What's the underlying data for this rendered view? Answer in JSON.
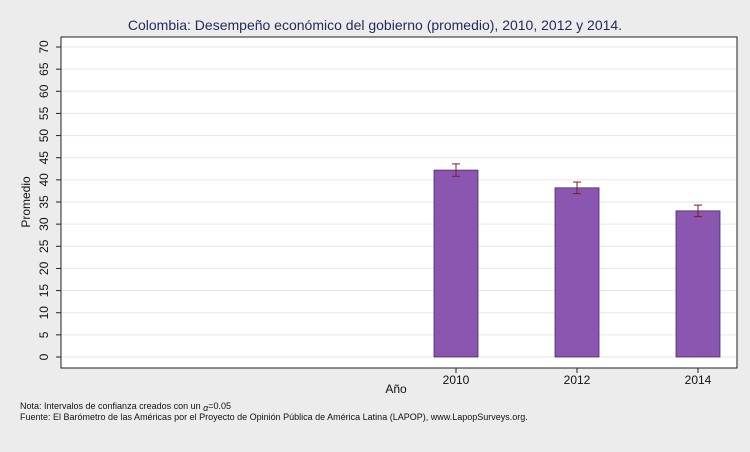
{
  "chart_data": {
    "type": "bar",
    "title": "Colombia: Desempeño económico del gobierno (promedio), 2010, 2012 y 2014.",
    "xlabel": "Año",
    "ylabel": "Promedio",
    "categories": [
      "2010",
      "2012",
      "2014"
    ],
    "values": [
      42.2,
      38.2,
      33.0
    ],
    "ci_lower": [
      40.8,
      36.9,
      31.7
    ],
    "ci_upper": [
      43.6,
      39.5,
      34.3
    ],
    "ylim": [
      0,
      70
    ],
    "yticks": [
      0,
      5,
      10,
      15,
      20,
      25,
      30,
      35,
      40,
      45,
      50,
      55,
      60,
      65,
      70
    ],
    "grid": true,
    "bar_color": "#8a56b0",
    "error_bar_color": "#7a1f2a"
  },
  "notes": {
    "line1_prefix": "Nota: Intervalos de confianza creados con un ",
    "alpha_symbol": "α",
    "line1_suffix": "=0.05",
    "line2": "Fuente: El Barómetro de las Américas por el Proyecto de Opinión Pública de América Latina (LAPOP), www.LapopSurveys.org."
  }
}
